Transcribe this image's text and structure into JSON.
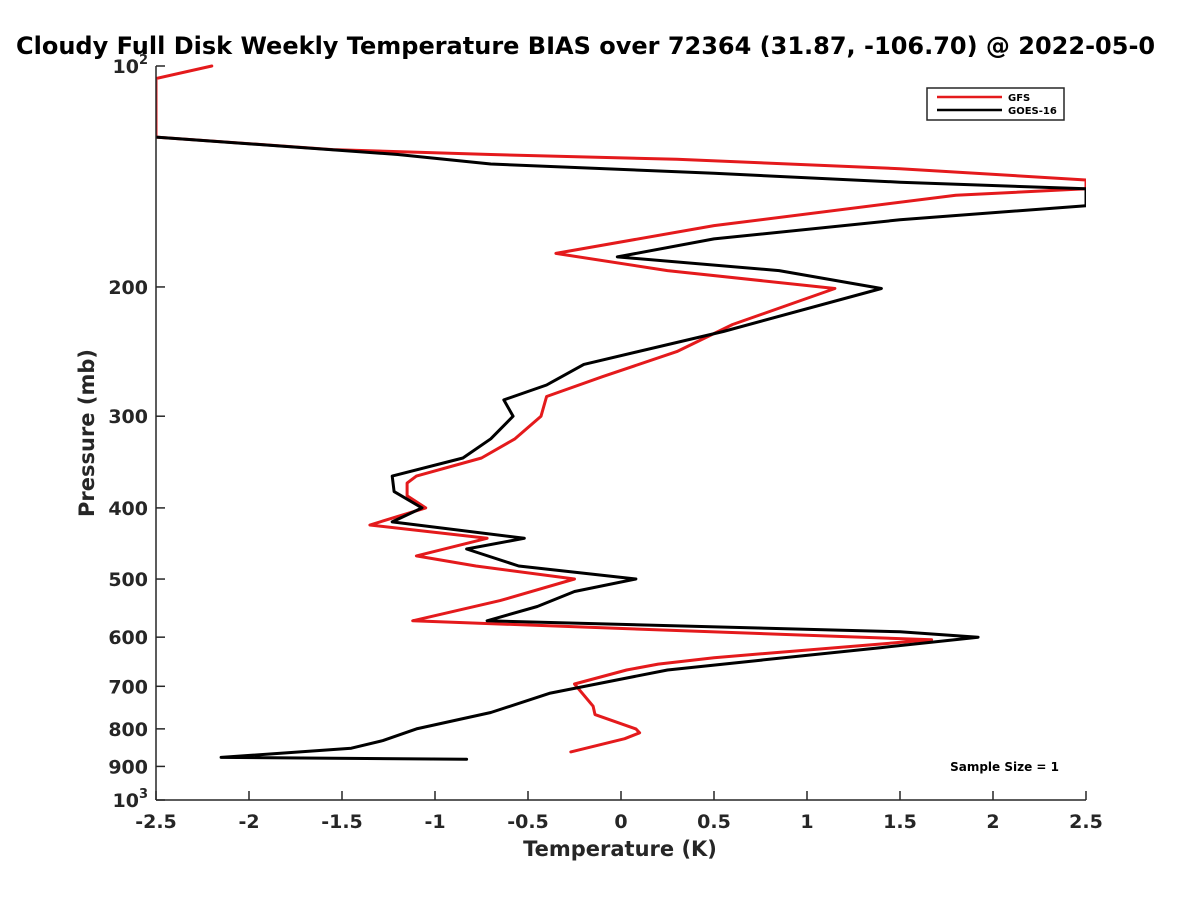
{
  "chart_data": {
    "type": "line",
    "title": "Cloudy Full Disk Weekly Temperature BIAS over 72364 (31.87, -106.70) @ 2022-05-0",
    "xlabel": "Temperature (K)",
    "ylabel": "Pressure (mb)",
    "xlim": [
      -2.5,
      2.5
    ],
    "ylim": [
      100,
      1000
    ],
    "y_scale": "log",
    "y_reversed": true,
    "x_ticks": [
      "-2.5",
      "-2",
      "-1.5",
      "-1",
      "-0.5",
      "0",
      "0.5",
      "1",
      "1.5",
      "2",
      "2.5"
    ],
    "y_ticks": [
      {
        "value": 100,
        "base": "10",
        "exp": "2"
      },
      {
        "value": 200,
        "label": "200"
      },
      {
        "value": 300,
        "label": "300"
      },
      {
        "value": 400,
        "label": "400"
      },
      {
        "value": 500,
        "label": "500"
      },
      {
        "value": 600,
        "label": "600"
      },
      {
        "value": 700,
        "label": "700"
      },
      {
        "value": 800,
        "label": "800"
      },
      {
        "value": 900,
        "label": "900"
      },
      {
        "value": 1000,
        "base": "10",
        "exp": "3"
      }
    ],
    "grid": false,
    "legend_position": "top-right",
    "annotation": "Sample Size = 1",
    "series": [
      {
        "name": "GFS",
        "color": "#e41a1c",
        "points": [
          [
            -2.2,
            100
          ],
          [
            -2.5,
            104
          ],
          [
            -2.5,
            125
          ],
          [
            -1.55,
            130
          ],
          [
            -0.7,
            132
          ],
          [
            0.3,
            134
          ],
          [
            1.5,
            138
          ],
          [
            2.5,
            143
          ],
          [
            2.5,
            147
          ],
          [
            1.8,
            150
          ],
          [
            0.5,
            165
          ],
          [
            -0.35,
            180
          ],
          [
            0.25,
            190
          ],
          [
            1.15,
            201
          ],
          [
            0.6,
            225
          ],
          [
            0.3,
            245
          ],
          [
            -0.1,
            265
          ],
          [
            -0.4,
            282
          ],
          [
            -0.43,
            300
          ],
          [
            -0.57,
            322
          ],
          [
            -0.75,
            342
          ],
          [
            -1.1,
            362
          ],
          [
            -1.15,
            370
          ],
          [
            -1.15,
            385
          ],
          [
            -1.05,
            400
          ],
          [
            -1.35,
            422
          ],
          [
            -0.72,
            440
          ],
          [
            -1.1,
            465
          ],
          [
            -0.78,
            480
          ],
          [
            -0.25,
            500
          ],
          [
            -0.65,
            535
          ],
          [
            -1.12,
            570
          ],
          [
            -0.3,
            580
          ],
          [
            1.67,
            605
          ],
          [
            0.5,
            640
          ],
          [
            0.2,
            653
          ],
          [
            0.03,
            665
          ],
          [
            -0.25,
            695
          ],
          [
            -0.15,
            745
          ],
          [
            -0.14,
            765
          ],
          [
            0.08,
            800
          ],
          [
            0.1,
            810
          ],
          [
            0.02,
            825
          ],
          [
            -0.27,
            860
          ]
        ]
      },
      {
        "name": "GOES-16",
        "color": "#000000",
        "points": [
          [
            -2.5,
            125
          ],
          [
            -1.2,
            132
          ],
          [
            -0.7,
            136
          ],
          [
            0.5,
            140
          ],
          [
            1.5,
            144
          ],
          [
            2.5,
            147
          ],
          [
            2.5,
            155
          ],
          [
            1.5,
            162
          ],
          [
            0.5,
            172
          ],
          [
            -0.02,
            182
          ],
          [
            0.85,
            190
          ],
          [
            1.4,
            201
          ],
          [
            0.55,
            230
          ],
          [
            -0.2,
            255
          ],
          [
            -0.4,
            272
          ],
          [
            -0.63,
            285
          ],
          [
            -0.58,
            300
          ],
          [
            -0.7,
            322
          ],
          [
            -0.85,
            342
          ],
          [
            -1.23,
            362
          ],
          [
            -1.22,
            380
          ],
          [
            -1.07,
            400
          ],
          [
            -1.23,
            418
          ],
          [
            -0.52,
            440
          ],
          [
            -0.83,
            455
          ],
          [
            -0.55,
            480
          ],
          [
            0.08,
            500
          ],
          [
            -0.25,
            520
          ],
          [
            -0.45,
            545
          ],
          [
            -0.72,
            570
          ],
          [
            1.5,
            590
          ],
          [
            1.92,
            600
          ],
          [
            1.4,
            620
          ],
          [
            0.75,
            645
          ],
          [
            0.25,
            665
          ],
          [
            -0.38,
            715
          ],
          [
            -0.7,
            760
          ],
          [
            -1.1,
            800
          ],
          [
            -1.28,
            830
          ],
          [
            -1.45,
            850
          ],
          [
            -2.15,
            875
          ],
          [
            -0.83,
            880
          ]
        ]
      }
    ]
  }
}
